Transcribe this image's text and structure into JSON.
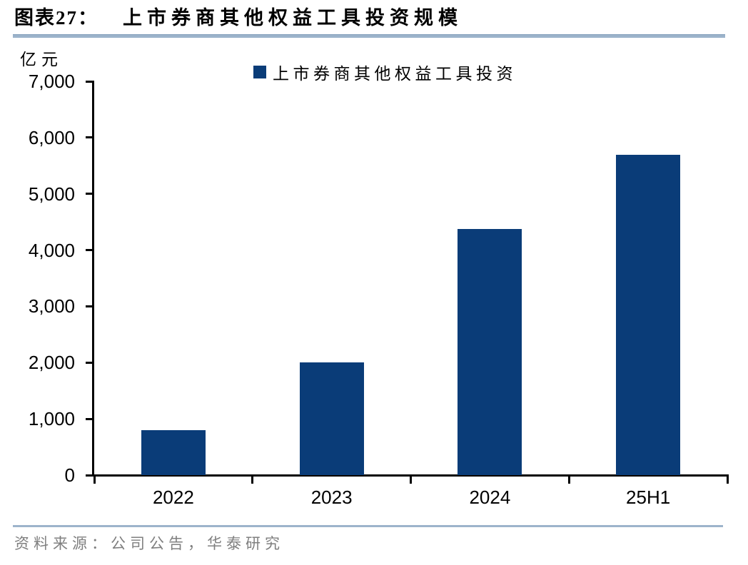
{
  "header": {
    "figure_label": "图表27：",
    "title": "上市券商其他权益工具投资规模"
  },
  "chart_data": {
    "type": "bar",
    "title": "上市券商其他权益工具投资规模",
    "unit_label": "亿元",
    "legend": "上市券商其他权益工具投资",
    "legend_position": "top-center",
    "categories": [
      "2022",
      "2023",
      "2024",
      "25H1"
    ],
    "values": [
      800,
      2000,
      4370,
      5700
    ],
    "xlabel": "",
    "ylabel": "亿元",
    "ylim": [
      0,
      7000
    ],
    "ytick_step": 1000,
    "grid": false,
    "bar_color": "#0a3c78"
  },
  "footer": {
    "source": "资料来源：公司公告，华泰研究"
  }
}
